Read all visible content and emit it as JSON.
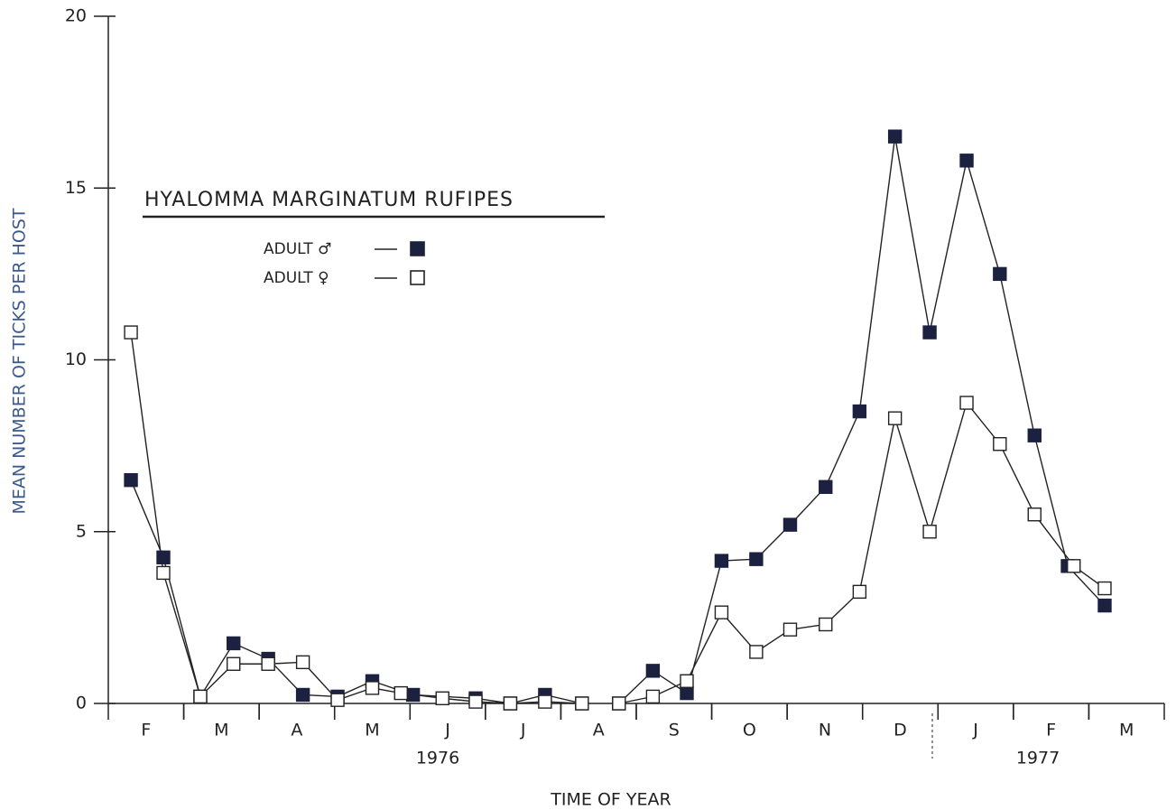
{
  "chart_data": {
    "type": "line",
    "title": "HYALOMMA  MARGINATUM  RUFIPES",
    "x_label": "TIME OF YEAR",
    "y_label": "MEAN NUMBER OF TICKS PER HOST",
    "xlim": [
      0,
      14
    ],
    "xticks": [
      {
        "value": 0.5,
        "label": "F"
      },
      {
        "value": 1.5,
        "label": "M"
      },
      {
        "value": 2.5,
        "label": "A"
      },
      {
        "value": 3.5,
        "label": "M"
      },
      {
        "value": 4.5,
        "label": "J"
      },
      {
        "value": 5.5,
        "label": "J"
      },
      {
        "value": 6.5,
        "label": "A"
      },
      {
        "value": 7.5,
        "label": "S"
      },
      {
        "value": 8.5,
        "label": "O"
      },
      {
        "value": 9.5,
        "label": "N"
      },
      {
        "value": 10.5,
        "label": "D"
      },
      {
        "value": 11.5,
        "label": "J"
      },
      {
        "value": 12.5,
        "label": "F"
      },
      {
        "value": 13.5,
        "label": "M"
      }
    ],
    "years": [
      "1976",
      "1977"
    ],
    "ylim": [
      0,
      20
    ],
    "yticks": [
      0,
      5,
      10,
      15,
      20
    ],
    "series": [
      {
        "name": "ADULT ♂",
        "color": "#1c2140",
        "marker": "filled",
        "x": [
          0.3,
          0.73,
          1.22,
          1.66,
          2.12,
          2.58,
          3.04,
          3.5,
          4.04,
          4.87,
          5.33,
          5.79,
          6.28,
          6.5,
          6.77,
          7.22,
          7.67,
          8.13,
          8.59,
          9.04,
          9.51,
          9.96,
          10.43,
          10.89,
          11.38,
          11.82,
          12.28,
          12.72,
          13.21
        ],
        "values": [
          6.5,
          4.25,
          0.2,
          1.75,
          1.3,
          0.25,
          0.2,
          0.65,
          0.25,
          0.15,
          0,
          0.25,
          0,
          null,
          0,
          0.95,
          0.3,
          4.15,
          4.2,
          5.2,
          6.3,
          8.5,
          16.5,
          10.8,
          15.8,
          12.5,
          7.8,
          4.0,
          2.85
        ]
      },
      {
        "name": "ADULT ♀",
        "color": "#222222",
        "marker": "open",
        "x": [
          0.3,
          0.73,
          1.22,
          1.66,
          2.12,
          2.58,
          3.04,
          3.5,
          3.88,
          4.43,
          4.87,
          5.33,
          5.79,
          6.28,
          6.5,
          6.77,
          7.22,
          7.67,
          8.13,
          8.59,
          9.04,
          9.51,
          9.96,
          10.43,
          10.89,
          11.38,
          11.82,
          12.28,
          12.8,
          13.21
        ],
        "values": [
          10.8,
          3.8,
          0.2,
          1.15,
          1.15,
          1.2,
          0.1,
          0.45,
          0.3,
          0.15,
          0.05,
          0,
          0.05,
          0,
          null,
          0,
          0.2,
          0.65,
          2.65,
          1.5,
          2.15,
          2.3,
          3.25,
          8.3,
          5.0,
          8.75,
          7.55,
          5.5,
          4.0,
          3.35
        ]
      }
    ]
  }
}
